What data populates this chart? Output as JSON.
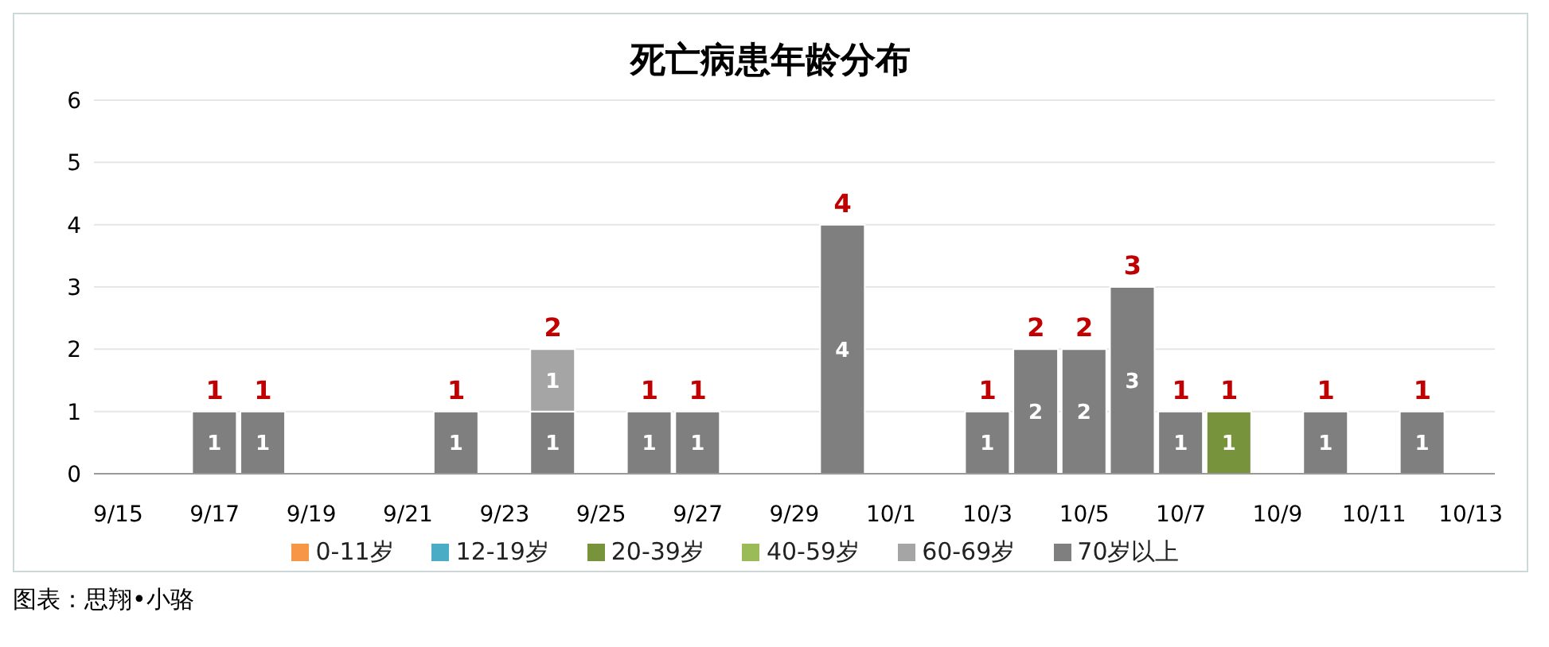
{
  "chart_data": {
    "type": "bar",
    "title": "死亡病患年龄分布",
    "stacked": true,
    "categories": [
      "9/15",
      null,
      "9/17",
      null,
      "9/19",
      null,
      "9/21",
      null,
      "9/23",
      null,
      "9/25",
      null,
      "9/27",
      null,
      "9/29",
      null,
      "10/1",
      null,
      "10/3",
      null,
      "10/5",
      null,
      "10/7",
      null,
      "10/9",
      null,
      "10/11",
      null,
      "10/13"
    ],
    "series": [
      {
        "name": "70岁以上",
        "color": "#7f7f7f",
        "values": [
          null,
          null,
          1,
          1,
          null,
          null,
          null,
          1,
          null,
          1,
          null,
          1,
          1,
          null,
          null,
          4,
          null,
          null,
          1,
          2,
          2,
          3,
          1,
          null,
          null,
          1,
          null,
          1,
          null
        ]
      },
      {
        "name": "60-69岁",
        "color": "#a5a5a5",
        "values": [
          null,
          null,
          null,
          null,
          null,
          null,
          null,
          null,
          null,
          1,
          null,
          null,
          null,
          null,
          null,
          null,
          null,
          null,
          null,
          null,
          null,
          null,
          null,
          null,
          null,
          null,
          null,
          null,
          null
        ]
      },
      {
        "name": "40-59岁",
        "color": "#9bbb59",
        "values": [
          null,
          null,
          null,
          null,
          null,
          null,
          null,
          null,
          null,
          null,
          null,
          null,
          null,
          null,
          null,
          null,
          null,
          null,
          null,
          null,
          null,
          null,
          null,
          null,
          null,
          null,
          null,
          null,
          null
        ]
      },
      {
        "name": "20-39岁",
        "color": "#77933c",
        "values": [
          null,
          null,
          null,
          null,
          null,
          null,
          null,
          null,
          null,
          null,
          null,
          null,
          null,
          null,
          null,
          null,
          null,
          null,
          null,
          null,
          null,
          null,
          null,
          1,
          null,
          null,
          null,
          null,
          null
        ]
      },
      {
        "name": "12-19岁",
        "color": "#4bacc6",
        "values": [
          null,
          null,
          null,
          null,
          null,
          null,
          null,
          null,
          null,
          null,
          null,
          null,
          null,
          null,
          null,
          null,
          null,
          null,
          null,
          null,
          null,
          null,
          null,
          null,
          null,
          null,
          null,
          null,
          null
        ]
      },
      {
        "name": "0-11岁",
        "color": "#f79646",
        "values": [
          null,
          null,
          null,
          null,
          null,
          null,
          null,
          null,
          null,
          null,
          null,
          null,
          null,
          null,
          null,
          null,
          null,
          null,
          null,
          null,
          null,
          null,
          null,
          null,
          null,
          null,
          null,
          null,
          null
        ]
      }
    ],
    "totals": [
      null,
      null,
      "1",
      "1",
      null,
      null,
      null,
      "1",
      null,
      "2",
      null,
      "1",
      "1",
      null,
      null,
      "4",
      null,
      null,
      "1",
      "2",
      "2",
      "3",
      "1",
      "1",
      null,
      "1",
      null,
      "1",
      null
    ],
    "data_labels": true,
    "ylim": [
      0,
      6
    ],
    "yticks": [
      0,
      1,
      2,
      3,
      4,
      5,
      6
    ],
    "grid": "y",
    "legend": "bottom",
    "annotations": [
      "图表：思翔•小骆"
    ]
  }
}
